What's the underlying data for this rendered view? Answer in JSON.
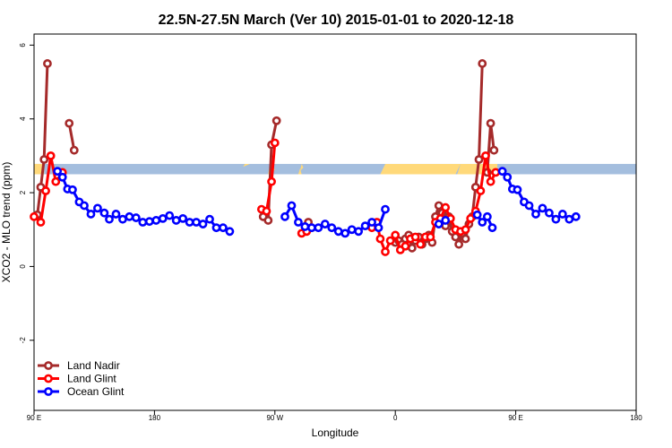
{
  "chart_data": {
    "type": "line",
    "title": "22.5N-27.5N March (Ver 10)   2015-01-01 to 2020-12-18",
    "xlabel": "Longitude",
    "ylabel": "XCO2 - MLO trend (ppm)",
    "xlim": [
      90,
      450
    ],
    "ylim": [
      -3.9,
      6.3
    ],
    "x_ticks": [
      {
        "value": 90,
        "label": "90 E"
      },
      {
        "value": 162,
        "label": "180"
      },
      {
        "value": 234,
        "label": "90 W"
      },
      {
        "value": 306,
        "label": "0"
      },
      {
        "value": 378,
        "label": "90 E"
      },
      {
        "value": 450,
        "label": "180"
      }
    ],
    "y_ticks": [
      {
        "value": -2,
        "label": "-2"
      },
      {
        "value": 0,
        "label": "0"
      },
      {
        "value": 2,
        "label": "2"
      },
      {
        "value": 4,
        "label": "4"
      },
      {
        "value": 6,
        "label": "6"
      }
    ],
    "band": {
      "y_min": 2.5,
      "y_max": 2.78,
      "ocean_color": "#a4bede",
      "land_color": "#ffd97a"
    },
    "legend": {
      "position": "bottom-left"
    },
    "series": [
      {
        "name": "Land Nadir",
        "color": "#a52a2a",
        "segments": [
          [
            [
              92,
              1.4
            ],
            [
              94,
              2.15
            ],
            [
              96,
              2.9
            ],
            [
              98,
              5.5
            ]
          ],
          [
            [
              111,
              3.88
            ],
            [
              114,
              3.15
            ]
          ],
          [
            [
              227,
              1.35
            ],
            [
              230,
              1.25
            ],
            [
              232,
              3.3
            ],
            [
              235,
              3.95
            ]
          ],
          [
            [
              254,
              1.2
            ],
            [
              256,
              1.05
            ]
          ],
          [
            [
              306,
              0.65
            ],
            [
              308,
              0.7
            ],
            [
              310,
              0.6
            ],
            [
              312,
              0.75
            ],
            [
              314,
              0.85
            ],
            [
              316,
              0.5
            ],
            [
              318,
              0.7
            ],
            [
              320,
              0.8
            ],
            [
              322,
              0.6
            ],
            [
              324,
              0.75
            ],
            [
              326,
              0.85
            ],
            [
              328,
              0.65
            ],
            [
              330,
              1.35
            ],
            [
              332,
              1.65
            ],
            [
              334,
              1.45
            ],
            [
              336,
              1.1
            ],
            [
              338,
              1.35
            ],
            [
              340,
              0.95
            ],
            [
              342,
              0.8
            ],
            [
              344,
              0.6
            ],
            [
              346,
              0.9
            ],
            [
              348,
              0.75
            ],
            [
              350,
              1.15
            ],
            [
              352,
              1.35
            ],
            [
              354,
              2.15
            ],
            [
              356,
              2.9
            ],
            [
              358,
              5.5
            ]
          ],
          [
            [
              361,
              2.55
            ],
            [
              363,
              3.88
            ],
            [
              365,
              3.15
            ]
          ]
        ]
      },
      {
        "name": "Land Glint",
        "color": "#ff0000",
        "segments": [
          [
            [
              90,
              1.35
            ],
            [
              94,
              1.2
            ],
            [
              97,
              2.05
            ],
            [
              100,
              3.0
            ],
            [
              103,
              2.3
            ],
            [
              107,
              2.55
            ]
          ],
          [
            [
              226,
              1.55
            ],
            [
              229,
              1.5
            ],
            [
              232,
              2.3
            ],
            [
              234,
              3.35
            ]
          ],
          [
            [
              250,
              0.9
            ],
            [
              253,
              0.95
            ]
          ],
          [
            [
              292,
              1.05
            ],
            [
              295,
              1.2
            ],
            [
              297,
              0.75
            ],
            [
              300,
              0.4
            ],
            [
              303,
              0.7
            ],
            [
              306,
              0.85
            ],
            [
              309,
              0.45
            ],
            [
              312,
              0.55
            ],
            [
              315,
              0.75
            ],
            [
              318,
              0.8
            ],
            [
              321,
              0.6
            ],
            [
              324,
              0.8
            ],
            [
              327,
              0.8
            ],
            [
              330,
              1.2
            ],
            [
              333,
              1.3
            ],
            [
              336,
              1.6
            ],
            [
              339,
              1.3
            ],
            [
              342,
              1.0
            ],
            [
              345,
              0.95
            ],
            [
              348,
              1.0
            ],
            [
              351,
              1.3
            ],
            [
              354,
              1.5
            ],
            [
              357,
              2.05
            ],
            [
              360,
              3.0
            ],
            [
              363,
              2.3
            ],
            [
              366,
              2.55
            ]
          ]
        ]
      },
      {
        "name": "Ocean Glint",
        "color": "#0000ff",
        "segments": [
          [
            [
              104,
              2.58
            ],
            [
              107,
              2.42
            ],
            [
              110,
              2.1
            ],
            [
              113,
              2.08
            ],
            [
              117,
              1.75
            ],
            [
              120,
              1.65
            ],
            [
              124,
              1.42
            ],
            [
              128,
              1.58
            ],
            [
              132,
              1.45
            ],
            [
              135,
              1.28
            ],
            [
              139,
              1.42
            ],
            [
              143,
              1.28
            ],
            [
              147,
              1.35
            ],
            [
              151,
              1.32
            ],
            [
              155,
              1.2
            ],
            [
              159,
              1.22
            ],
            [
              163,
              1.25
            ],
            [
              167,
              1.3
            ],
            [
              171,
              1.38
            ],
            [
              175,
              1.25
            ],
            [
              179,
              1.3
            ],
            [
              183,
              1.2
            ],
            [
              187,
              1.2
            ],
            [
              191,
              1.15
            ],
            [
              195,
              1.28
            ],
            [
              199,
              1.05
            ],
            [
              203,
              1.05
            ],
            [
              207,
              0.95
            ]
          ],
          [
            [
              240,
              1.35
            ],
            [
              244,
              1.65
            ],
            [
              248,
              1.2
            ],
            [
              252,
              1.08
            ],
            [
              256,
              1.05
            ],
            [
              260,
              1.05
            ],
            [
              264,
              1.15
            ],
            [
              268,
              1.05
            ],
            [
              272,
              0.95
            ],
            [
              276,
              0.9
            ],
            [
              280,
              1.0
            ],
            [
              284,
              0.95
            ],
            [
              288,
              1.1
            ],
            [
              292,
              1.2
            ],
            [
              296,
              1.05
            ],
            [
              300,
              1.55
            ]
          ],
          [
            [
              332,
              1.15
            ],
            [
              336,
              1.25
            ]
          ],
          [
            [
              355,
              1.4
            ],
            [
              358,
              1.2
            ],
            [
              361,
              1.35
            ],
            [
              364,
              1.05
            ]
          ],
          [
            [
              370,
              2.58
            ],
            [
              373,
              2.42
            ],
            [
              376,
              2.1
            ],
            [
              379,
              2.08
            ],
            [
              383,
              1.75
            ],
            [
              386,
              1.65
            ],
            [
              390,
              1.42
            ],
            [
              394,
              1.58
            ],
            [
              398,
              1.45
            ],
            [
              402,
              1.28
            ],
            [
              406,
              1.42
            ],
            [
              410,
              1.28
            ],
            [
              414,
              1.35
            ]
          ]
        ]
      }
    ]
  }
}
